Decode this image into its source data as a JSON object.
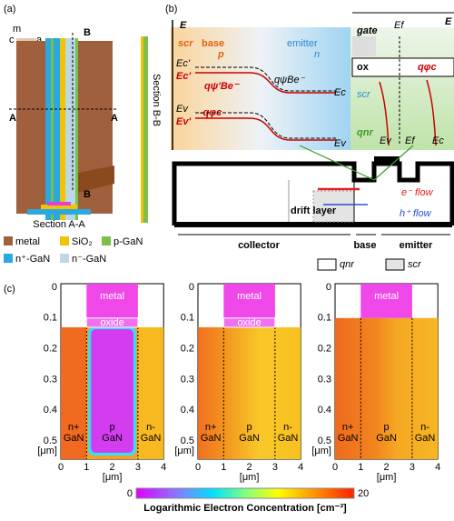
{
  "panel_a": {
    "label": "(a)",
    "axes": [
      "m",
      "c",
      "a"
    ],
    "cut_b": "B",
    "cut_a": "A",
    "section_bb": "Section B-B",
    "section_aa": "Section A-A",
    "legend": [
      "metal",
      "SiO₂",
      "p-GaN",
      "n⁺-GaN",
      "n⁻-GaN"
    ]
  },
  "panel_b": {
    "label": "(b)",
    "band": {
      "axis": "E",
      "scr": "scr",
      "base": "base",
      "p": "p",
      "emitter": "emitter",
      "n": "n",
      "ec_prime": "Ec'",
      "ec_left": "Ec'",
      "psi_prime": "qψ'Be⁻",
      "psi": "qψBe⁻",
      "ec": "Ec",
      "ev_left": "Ev",
      "ev_prime": "Ev'",
      "phi": "-qφc",
      "ev": "Ev"
    },
    "inset": {
      "axis": "E",
      "gate": "gate",
      "ef_top": "Ef",
      "ox": "ox",
      "phi": "qφc",
      "scr": "scr",
      "qnr": "qnr",
      "ev": "Ev",
      "ef": "Ef",
      "ec": "Ec"
    },
    "device": {
      "e_flow": "e⁻ flow",
      "h_flow": "h⁺ flow",
      "drift": "drift layer",
      "collector": "collector",
      "base": "base",
      "emitter": "emitter",
      "qnr": "qnr",
      "scr": "scr"
    }
  },
  "panel_c": {
    "label": "(c)",
    "yticks": [
      "0",
      "0.1",
      "0.2",
      "0.3",
      "0.4",
      "0.5"
    ],
    "xticks": [
      "0",
      "1",
      "2",
      "3",
      "4"
    ],
    "unit": "[μm]",
    "plots": [
      {
        "metal": "metal",
        "oxide": "oxide",
        "regions": [
          [
            "n+",
            "GaN"
          ],
          [
            "p",
            "GaN"
          ],
          [
            "n-",
            "GaN"
          ]
        ]
      },
      {
        "metal": "metal",
        "oxide": "oxide",
        "regions": [
          [
            "n+",
            "GaN"
          ],
          [
            "p",
            "GaN"
          ],
          [
            "n-",
            "GaN"
          ]
        ]
      },
      {
        "metal": "metal",
        "regions": [
          [
            "n+",
            "GaN"
          ],
          [
            "p",
            "GaN"
          ],
          [
            "n-",
            "GaN"
          ]
        ]
      }
    ],
    "colorbar": {
      "min": "0",
      "max": "20",
      "label": "Logarithmic Electron Concentration [cm⁻³]"
    }
  }
}
